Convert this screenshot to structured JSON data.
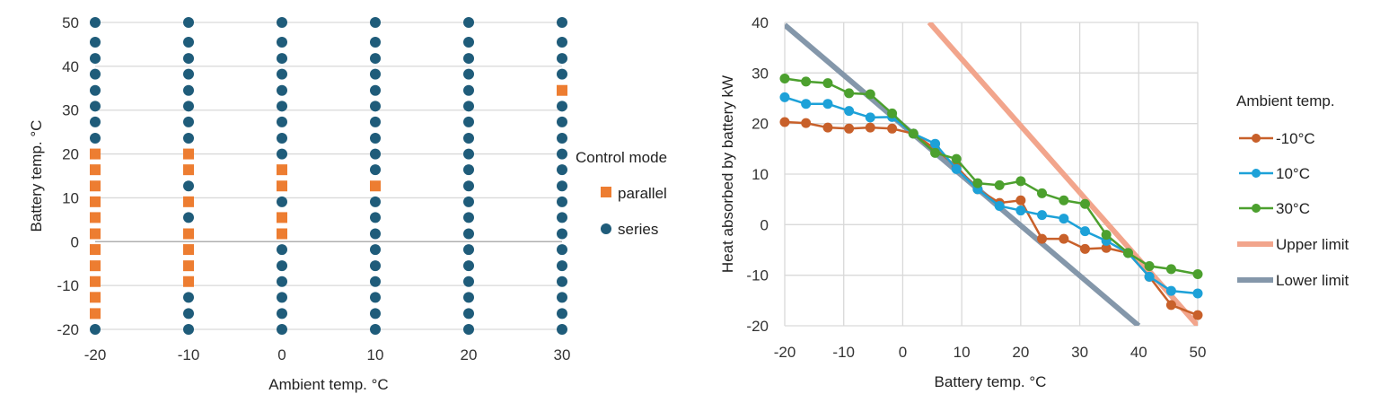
{
  "chart_data": [
    {
      "type": "scatter",
      "xlabel": "Ambient temp. °C",
      "ylabel": "Battery temp. °C",
      "xlim": [
        -20,
        30
      ],
      "ylim": [
        -20,
        50
      ],
      "xticks": [
        "-20",
        "-10",
        "0",
        "10",
        "20",
        "30"
      ],
      "yticks": [
        "-20",
        "-10",
        "0",
        "10",
        "20",
        "30",
        "40",
        "50"
      ],
      "legend_title": "Control mode",
      "series": [
        {
          "name": "parallel",
          "color": "#ED7D31",
          "marker": "square"
        },
        {
          "name": "series",
          "color": "#1F5C7A",
          "marker": "circle"
        }
      ],
      "battery_temps": [
        -20,
        -16.4,
        -12.7,
        -9.1,
        -5.5,
        -1.8,
        1.8,
        5.5,
        9.1,
        12.7,
        16.4,
        20,
        23.6,
        27.3,
        30.9,
        34.5,
        38.2,
        41.8,
        45.5,
        50
      ],
      "ambient_temps": [
        -20,
        -10,
        0,
        10,
        20,
        30
      ],
      "parallel_points": [
        {
          "x": -20,
          "y": [
            -16.4,
            -12.7,
            -9.1,
            -5.5,
            -1.8,
            1.8,
            5.5,
            9.1,
            12.7,
            16.4,
            20
          ]
        },
        {
          "x": -10,
          "y": [
            -9.1,
            -5.5,
            -1.8,
            1.8,
            9.1,
            16.4,
            20
          ]
        },
        {
          "x": 0,
          "y": [
            1.8,
            5.5,
            12.7,
            16.4
          ]
        },
        {
          "x": 10,
          "y": [
            12.7
          ]
        },
        {
          "x": 20,
          "y": []
        },
        {
          "x": 30,
          "y": [
            34.5
          ]
        }
      ]
    },
    {
      "type": "line",
      "xlabel": "Battery temp. °C",
      "ylabel": "Heat absorbed by battery kW",
      "xlim": [
        -20,
        50
      ],
      "ylim": [
        -20,
        40
      ],
      "xticks": [
        "-20",
        "-10",
        "0",
        "10",
        "20",
        "30",
        "40",
        "50"
      ],
      "yticks": [
        "-20",
        "-10",
        "0",
        "10",
        "20",
        "30",
        "40"
      ],
      "legend_title": "Ambient temp.",
      "x": [
        -20,
        -16.4,
        -12.7,
        -9.1,
        -5.5,
        -1.8,
        1.8,
        5.5,
        9.1,
        12.7,
        16.4,
        20,
        23.6,
        27.3,
        30.9,
        34.5,
        38.2,
        41.8,
        45.5,
        50
      ],
      "series": [
        {
          "name": "-10°C",
          "color": "#C8602A",
          "marker": "circle",
          "values": [
            20.3,
            20.1,
            19.2,
            19.0,
            19.2,
            19.0,
            18.0,
            15.0,
            11.5,
            7.0,
            4.3,
            4.8,
            -2.8,
            -2.8,
            -4.8,
            -4.6,
            -5.6,
            -10.3,
            -15.9,
            -17.9
          ]
        },
        {
          "name": "10°C",
          "color": "#1DA1D8",
          "marker": "circle",
          "values": [
            25.2,
            23.9,
            23.9,
            22.5,
            21.2,
            21.3,
            18.0,
            16.0,
            11.0,
            7.0,
            3.7,
            2.8,
            1.9,
            1.2,
            -1.3,
            -3.2,
            -5.6,
            -10.3,
            -13.1,
            -13.6
          ]
        },
        {
          "name": "30°C",
          "color": "#4CA02E",
          "marker": "circle",
          "values": [
            28.9,
            28.3,
            28.0,
            26.0,
            25.8,
            22.0,
            18.0,
            14.2,
            13.0,
            8.2,
            7.8,
            8.6,
            6.2,
            4.8,
            4.1,
            -2.0,
            -5.6,
            -8.2,
            -8.8,
            -9.8
          ]
        },
        {
          "name": "Upper limit",
          "color": "#F2A58C",
          "marker": "none",
          "x": [
            4.5,
            50
          ],
          "values": [
            40,
            -20
          ]
        },
        {
          "name": "Lower limit",
          "color": "#8497AA",
          "marker": "none",
          "x": [
            -20,
            40
          ],
          "values": [
            39.5,
            -20
          ]
        }
      ]
    }
  ]
}
